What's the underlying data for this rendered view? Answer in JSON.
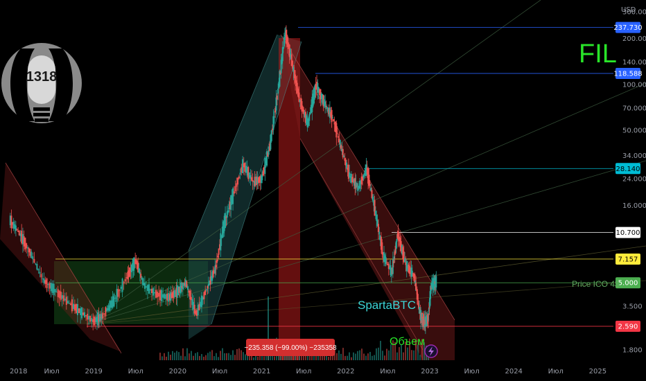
{
  "chart_data": {
    "type": "candlestick",
    "symbol": "FIL",
    "currency": "USD",
    "y_scale": "log",
    "ylim": [
      1.55,
      360
    ],
    "x_ticks": [
      "2018",
      "Июл",
      "2019",
      "Июл",
      "2020",
      "Июл",
      "2021",
      "Июл",
      "2022",
      "Июл",
      "2023",
      "Июл",
      "2024",
      "Июл",
      "2025"
    ],
    "y_ticks": [
      "300.000",
      "200.000",
      "140.000",
      "100.000",
      "70.000",
      "50.000",
      "34.000",
      "24.000",
      "16.000",
      "3.500",
      "1.800"
    ],
    "price_lines": [
      {
        "label": "237.730",
        "value": 237.73,
        "color": "#2962ff"
      },
      {
        "label": "118.588",
        "value": 118.588,
        "color": "#2962ff"
      },
      {
        "label": "28.140",
        "value": 28.14,
        "color": "#00bcd4"
      },
      {
        "label": "10.700",
        "value": 10.7,
        "color": "#ffffff"
      },
      {
        "label": "7.157",
        "value": 7.157,
        "color": "#ffeb3b"
      },
      {
        "label": "5.000",
        "value": 5.0,
        "color": "#4caf50"
      },
      {
        "label": "2.590",
        "value": 2.59,
        "color": "#f23645"
      }
    ],
    "series": [
      {
        "name": "FIL",
        "points": [
          [
            2018.0,
            13.0
          ],
          [
            2018.12,
            10.5
          ],
          [
            2018.25,
            7.8
          ],
          [
            2018.4,
            5.2
          ],
          [
            2018.55,
            4.4
          ],
          [
            2018.7,
            3.7
          ],
          [
            2018.85,
            3.2
          ],
          [
            2019.0,
            2.8
          ],
          [
            2019.1,
            3.0
          ],
          [
            2019.25,
            3.9
          ],
          [
            2019.4,
            5.5
          ],
          [
            2019.5,
            7.0
          ],
          [
            2019.6,
            4.8
          ],
          [
            2019.75,
            4.2
          ],
          [
            2019.9,
            4.0
          ],
          [
            2020.0,
            4.4
          ],
          [
            2020.1,
            5.0
          ],
          [
            2020.22,
            3.1
          ],
          [
            2020.35,
            4.6
          ],
          [
            2020.45,
            6.2
          ],
          [
            2020.55,
            12.0
          ],
          [
            2020.65,
            18.0
          ],
          [
            2020.78,
            30.0
          ],
          [
            2020.9,
            23.0
          ],
          [
            2021.0,
            24.0
          ],
          [
            2021.1,
            40.0
          ],
          [
            2021.2,
            95.0
          ],
          [
            2021.28,
            220.0
          ],
          [
            2021.35,
            150.0
          ],
          [
            2021.45,
            80.0
          ],
          [
            2021.55,
            55.0
          ],
          [
            2021.65,
            100.0
          ],
          [
            2021.75,
            75.0
          ],
          [
            2021.85,
            60.0
          ],
          [
            2021.95,
            38.0
          ],
          [
            2022.05,
            25.0
          ],
          [
            2022.15,
            21.0
          ],
          [
            2022.25,
            28.0
          ],
          [
            2022.35,
            15.0
          ],
          [
            2022.45,
            7.5
          ],
          [
            2022.55,
            5.8
          ],
          [
            2022.62,
            10.5
          ],
          [
            2022.72,
            6.5
          ],
          [
            2022.82,
            5.5
          ],
          [
            2022.88,
            3.2
          ],
          [
            2022.93,
            2.7
          ],
          [
            2022.98,
            2.9
          ],
          [
            2023.02,
            4.8
          ],
          [
            2023.08,
            5.1
          ]
        ]
      }
    ],
    "annotations": [
      "FIL",
      "SpartaBTC",
      "Объем",
      "Price ICO 4$",
      "1318"
    ],
    "range_badge": "−235.358 (−99.00%) −235358",
    "legend": "none",
    "grid": false
  },
  "colors": {
    "up": "#26a69a",
    "down": "#ef5350",
    "accent_green": "#29e529",
    "sparta": "#3dd6d6",
    "purple": "#9c27b0"
  },
  "icons": [
    "logo-1318",
    "lightning-icon"
  ]
}
